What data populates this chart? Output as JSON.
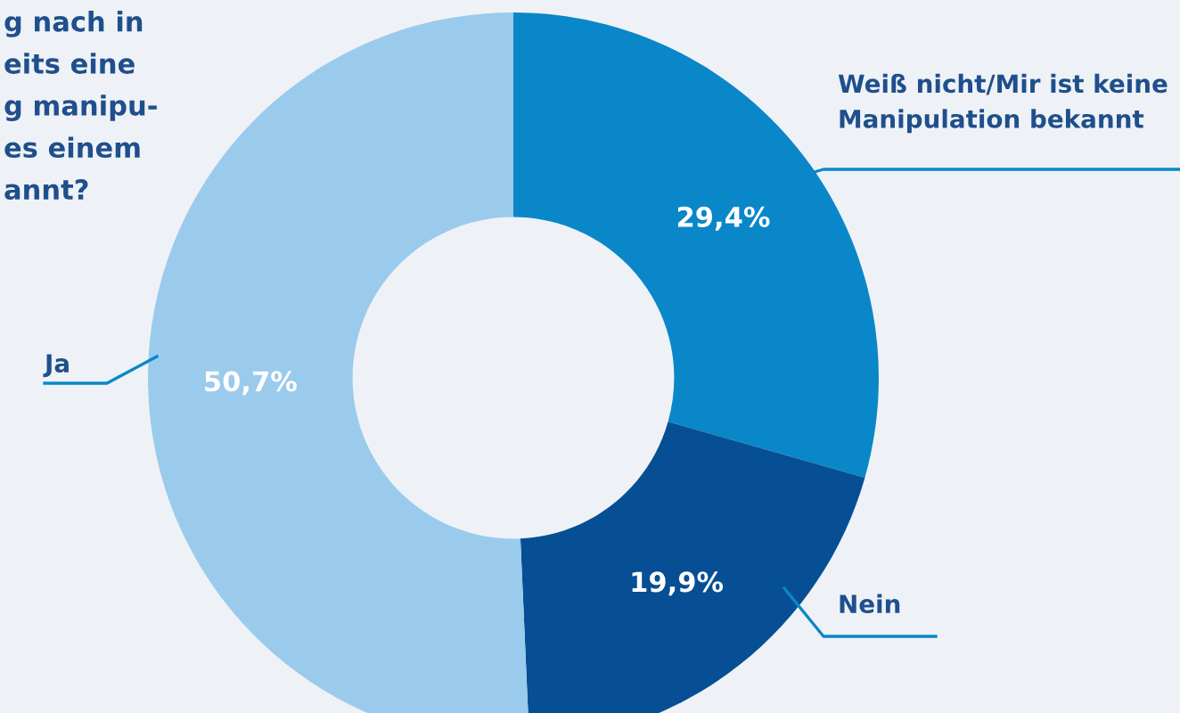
{
  "chart_data": {
    "type": "donut",
    "title": "g nach in\neits eine\ng manipu-\nes einem\nannt?",
    "categories": [
      "Weiß nicht/Mir ist keine\nManipulation bekannt",
      "Nein",
      "Ja"
    ],
    "values": [
      29.4,
      19.9,
      50.7
    ],
    "colors": [
      "#0a87c8",
      "#064f94",
      "#9acbec"
    ],
    "value_labels": [
      "29,4%",
      "19,9%",
      "50,7%"
    ],
    "legend": false
  }
}
